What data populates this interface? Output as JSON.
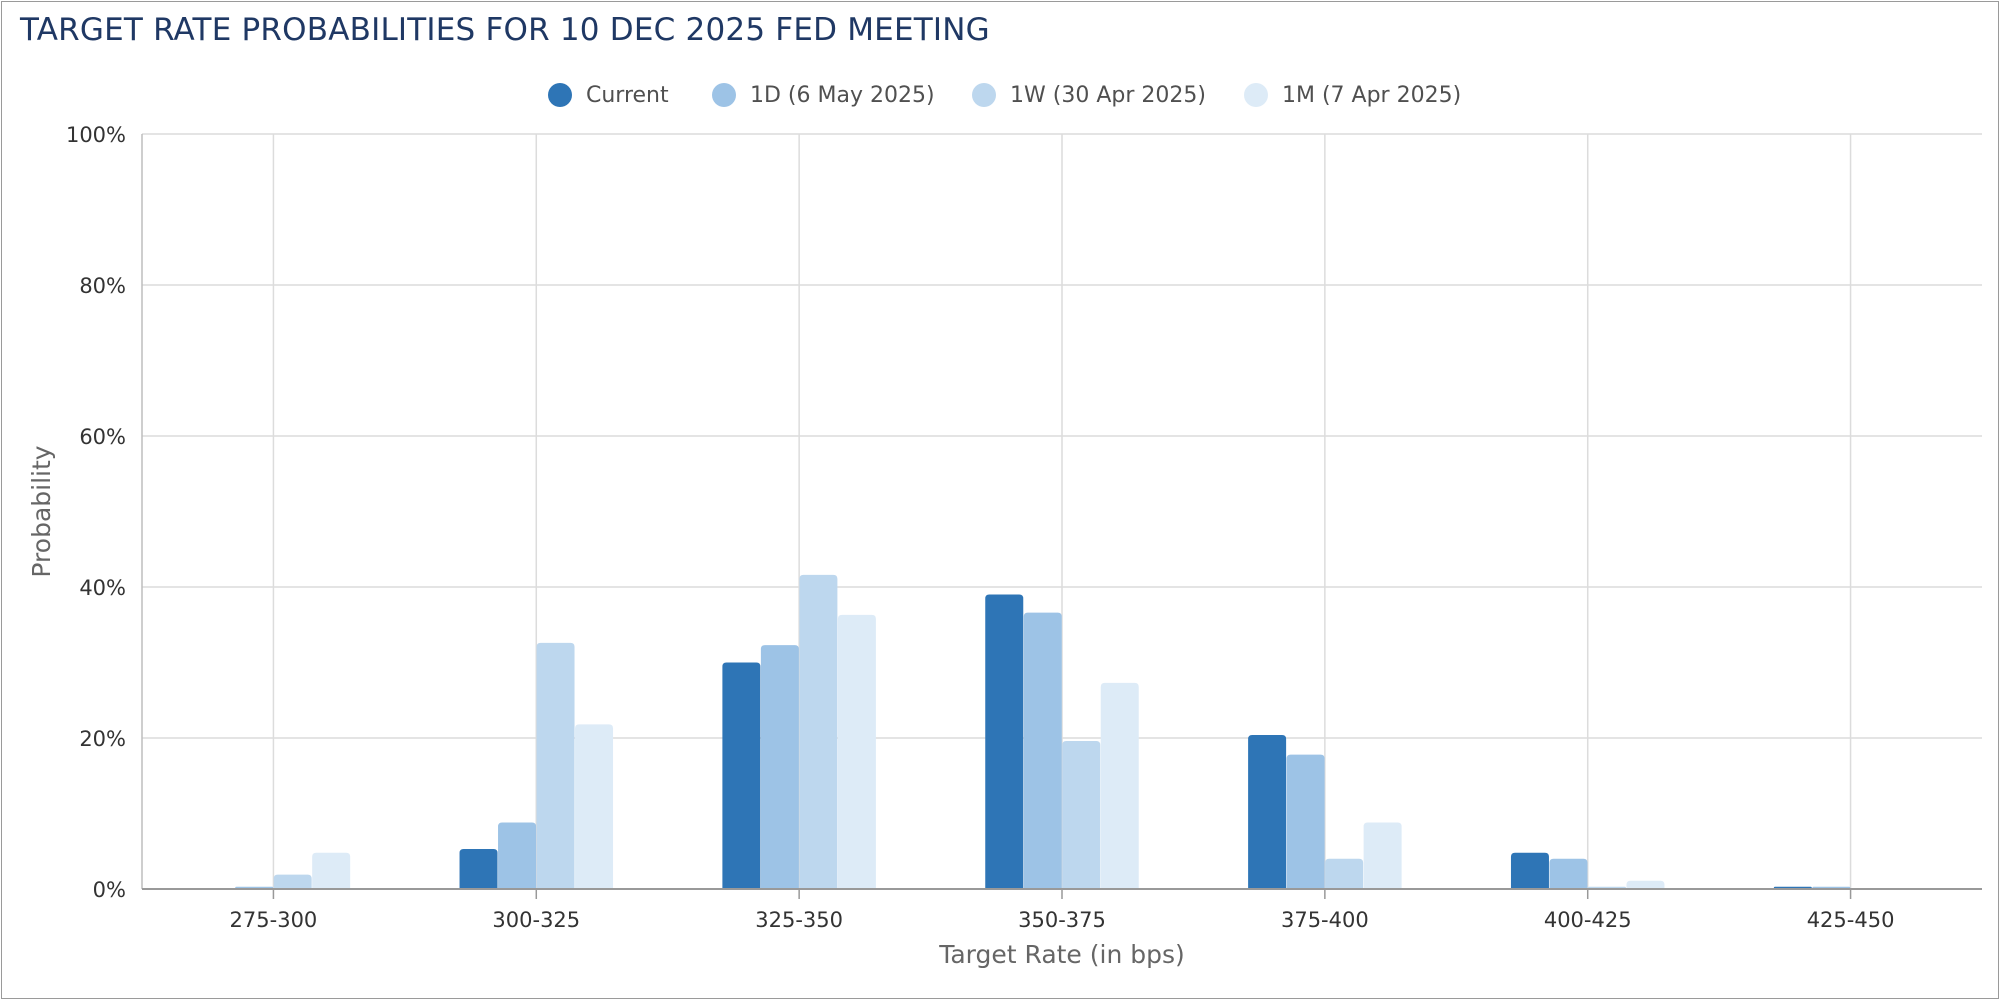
{
  "chart_data": {
    "type": "bar",
    "title": "TARGET RATE PROBABILITIES FOR 10 DEC 2025 FED MEETING",
    "xlabel": "Target Rate (in bps)",
    "ylabel": "Probability",
    "ylim": [
      0,
      100
    ],
    "y_ticks": [
      "0%",
      "20%",
      "40%",
      "60%",
      "80%",
      "100%"
    ],
    "grid": true,
    "legend_position": "top-center",
    "categories": [
      "275-300",
      "300-325",
      "325-350",
      "350-375",
      "375-400",
      "400-425",
      "425-450"
    ],
    "series": [
      {
        "name": "Current",
        "color": "#2e75b6",
        "values": [
          0.0,
          5.3,
          30.0,
          39.0,
          20.4,
          4.8,
          0.3
        ]
      },
      {
        "name": "1D (6 May 2025)",
        "color": "#9dc3e6",
        "values": [
          0.3,
          8.8,
          32.3,
          36.6,
          17.8,
          4.0,
          0.3
        ]
      },
      {
        "name": "1W (30 Apr 2025)",
        "color": "#bdd7ee",
        "values": [
          1.9,
          32.6,
          41.6,
          19.6,
          4.0,
          0.3,
          0.0
        ]
      },
      {
        "name": "1M (7 Apr 2025)",
        "color": "#ddebf7",
        "values": [
          4.8,
          21.8,
          36.3,
          27.3,
          8.8,
          1.1,
          0.0
        ]
      }
    ]
  }
}
